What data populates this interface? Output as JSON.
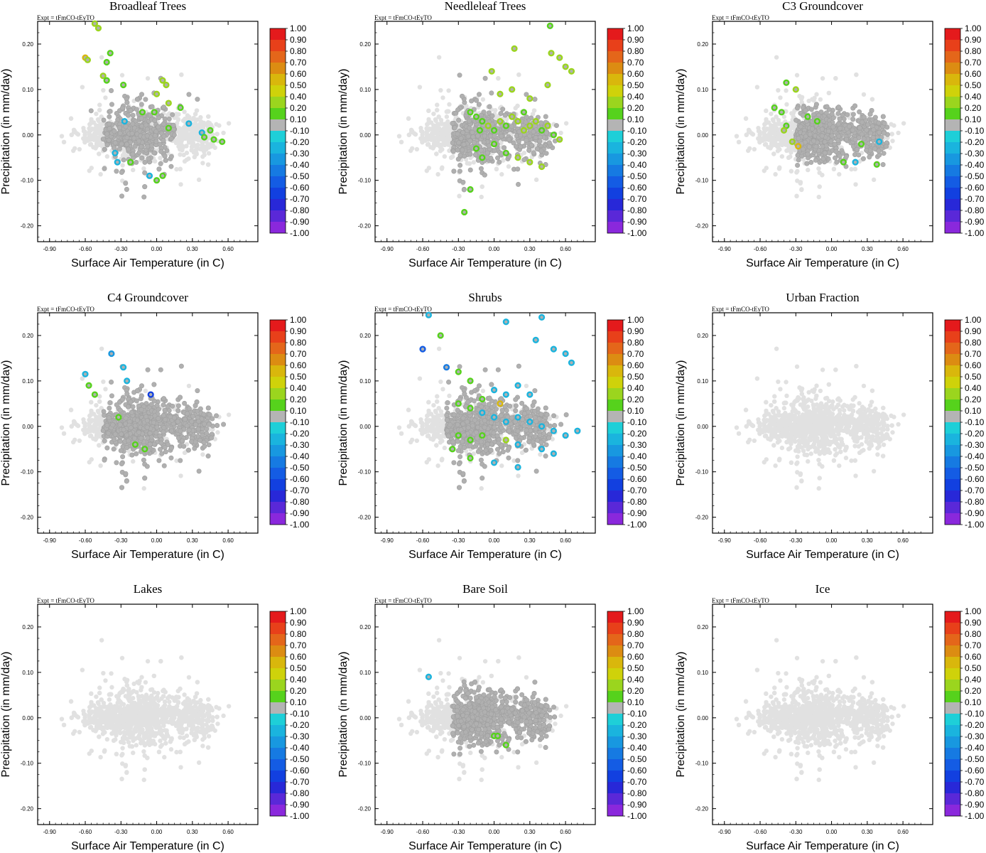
{
  "chart_data": {
    "type": "scatter",
    "experiment_label": "Expt = tFmCO-tEyTO",
    "xlabel": "Surface Air Temperature (in C)",
    "ylabel": "Precipitation (in mm/day)",
    "xlim": [
      -1.0,
      0.85
    ],
    "ylim": [
      -0.235,
      0.25
    ],
    "xticks": [
      -0.9,
      -0.6,
      -0.3,
      0.0,
      0.3,
      0.6
    ],
    "xtick_labels": [
      "-0.90",
      "-0.60",
      "-0.30",
      "0.00",
      "0.30",
      "0.60"
    ],
    "yticks": [
      -0.2,
      -0.1,
      0.0,
      0.1,
      0.2
    ],
    "ytick_labels": [
      "-0.20",
      "-0.10",
      "0.00",
      "0.10",
      "0.20"
    ],
    "colorbar": {
      "labels": [
        "1.00",
        "0.90",
        "0.80",
        "0.70",
        "0.60",
        "0.50",
        "0.40",
        "0.20",
        "0.10",
        "-0.10",
        "-0.20",
        "-0.30",
        "-0.40",
        "-0.50",
        "-0.60",
        "-0.70",
        "-0.80",
        "-0.90",
        "-1.00"
      ],
      "colors": [
        "#e41a1c",
        "#e8401a",
        "#e4661a",
        "#dc8c12",
        "#d9b70c",
        "#cfd20a",
        "#9bd51e",
        "#56d21c",
        "#b4b4b4",
        "#1ecfd8",
        "#1ab4de",
        "#1898e0",
        "#167ae2",
        "#145ce4",
        "#1240e0",
        "#2828d8",
        "#5a28d8",
        "#8a28dc"
      ]
    },
    "panels": [
      {
        "title": "Broadleaf Trees",
        "colored_points": [
          {
            "x": -0.6,
            "y": 0.17,
            "v": 0.6
          },
          {
            "x": -0.58,
            "y": 0.165,
            "v": 0.4
          },
          {
            "x": -0.52,
            "y": 0.245,
            "v": 0.3
          },
          {
            "x": -0.49,
            "y": 0.235,
            "v": 0.3
          },
          {
            "x": -0.39,
            "y": 0.18,
            "v": 0.15
          },
          {
            "x": -0.42,
            "y": 0.16,
            "v": 0.15
          },
          {
            "x": -0.45,
            "y": 0.13,
            "v": 0.3
          },
          {
            "x": -0.42,
            "y": 0.12,
            "v": 0.2
          },
          {
            "x": -0.28,
            "y": 0.11,
            "v": 0.15
          },
          {
            "x": -0.12,
            "y": 0.05,
            "v": 0.15
          },
          {
            "x": -0.02,
            "y": 0.05,
            "v": 0.15
          },
          {
            "x": 0.0,
            "y": 0.09,
            "v": 0.3
          },
          {
            "x": 0.05,
            "y": 0.12,
            "v": 0.4
          },
          {
            "x": 0.08,
            "y": 0.11,
            "v": 0.4
          },
          {
            "x": 0.1,
            "y": 0.07,
            "v": 0.3
          },
          {
            "x": 0.1,
            "y": 0.015,
            "v": 0.15
          },
          {
            "x": 0.2,
            "y": 0.06,
            "v": 0.15
          },
          {
            "x": 0.27,
            "y": 0.025,
            "v": -0.2
          },
          {
            "x": 0.38,
            "y": 0.005,
            "v": -0.2
          },
          {
            "x": 0.4,
            "y": -0.005,
            "v": 0.15
          },
          {
            "x": 0.45,
            "y": 0.01,
            "v": 0.15
          },
          {
            "x": 0.48,
            "y": -0.01,
            "v": 0.15
          },
          {
            "x": 0.55,
            "y": -0.015,
            "v": 0.15
          },
          {
            "x": 0.05,
            "y": -0.09,
            "v": 0.15
          },
          {
            "x": 0.0,
            "y": -0.1,
            "v": 0.15
          },
          {
            "x": -0.35,
            "y": -0.04,
            "v": -0.2
          },
          {
            "x": -0.33,
            "y": -0.06,
            "v": -0.2
          },
          {
            "x": -0.22,
            "y": -0.06,
            "v": 0.15
          },
          {
            "x": -0.27,
            "y": 0.03,
            "v": -0.2
          },
          {
            "x": -0.06,
            "y": -0.09,
            "v": -0.2
          }
        ]
      },
      {
        "title": "Needleleaf Trees",
        "colored_points": [
          {
            "x": 0.17,
            "y": 0.19,
            "v": 0.3
          },
          {
            "x": 0.47,
            "y": 0.24,
            "v": 0.15
          },
          {
            "x": 0.48,
            "y": 0.18,
            "v": 0.4
          },
          {
            "x": 0.55,
            "y": 0.17,
            "v": 0.3
          },
          {
            "x": 0.6,
            "y": 0.15,
            "v": 0.3
          },
          {
            "x": 0.65,
            "y": 0.14,
            "v": 0.4
          },
          {
            "x": -0.02,
            "y": 0.14,
            "v": 0.3
          },
          {
            "x": -0.2,
            "y": 0.05,
            "v": 0.15
          },
          {
            "x": -0.15,
            "y": 0.04,
            "v": 0.15
          },
          {
            "x": -0.1,
            "y": 0.03,
            "v": 0.15
          },
          {
            "x": -0.05,
            "y": 0.02,
            "v": 0.3
          },
          {
            "x": 0.0,
            "y": 0.01,
            "v": 0.15
          },
          {
            "x": 0.05,
            "y": 0.03,
            "v": 0.3
          },
          {
            "x": 0.1,
            "y": 0.02,
            "v": 0.15
          },
          {
            "x": 0.15,
            "y": 0.04,
            "v": 0.3
          },
          {
            "x": 0.2,
            "y": 0.03,
            "v": 0.3
          },
          {
            "x": 0.25,
            "y": 0.01,
            "v": 0.3
          },
          {
            "x": 0.3,
            "y": 0.02,
            "v": 0.3
          },
          {
            "x": 0.35,
            "y": 0.03,
            "v": 0.3
          },
          {
            "x": 0.4,
            "y": 0.01,
            "v": 0.15
          },
          {
            "x": 0.45,
            "y": 0.02,
            "v": 0.3
          },
          {
            "x": 0.5,
            "y": 0.0,
            "v": 0.15
          },
          {
            "x": 0.55,
            "y": -0.01,
            "v": 0.3
          },
          {
            "x": -0.15,
            "y": -0.03,
            "v": 0.15
          },
          {
            "x": -0.1,
            "y": -0.05,
            "v": 0.15
          },
          {
            "x": 0.0,
            "y": -0.02,
            "v": 0.15
          },
          {
            "x": 0.1,
            "y": -0.04,
            "v": 0.15
          },
          {
            "x": 0.2,
            "y": -0.05,
            "v": 0.3
          },
          {
            "x": 0.3,
            "y": -0.06,
            "v": 0.3
          },
          {
            "x": 0.4,
            "y": -0.07,
            "v": 0.4
          },
          {
            "x": -0.2,
            "y": -0.12,
            "v": 0.15
          },
          {
            "x": -0.25,
            "y": -0.17,
            "v": 0.15
          },
          {
            "x": 0.05,
            "y": 0.09,
            "v": 0.3
          },
          {
            "x": 0.15,
            "y": 0.1,
            "v": 0.3
          },
          {
            "x": 0.3,
            "y": 0.08,
            "v": 0.3
          },
          {
            "x": 0.45,
            "y": 0.11,
            "v": 0.3
          },
          {
            "x": -0.12,
            "y": 0.01,
            "v": 0.15
          },
          {
            "x": 0.25,
            "y": 0.05,
            "v": 0.15
          }
        ]
      },
      {
        "title": "C3 Groundcover",
        "colored_points": [
          {
            "x": -0.48,
            "y": 0.06,
            "v": 0.15
          },
          {
            "x": -0.42,
            "y": 0.05,
            "v": 0.15
          },
          {
            "x": -0.38,
            "y": 0.115,
            "v": 0.15
          },
          {
            "x": -0.3,
            "y": 0.1,
            "v": 0.4
          },
          {
            "x": -0.38,
            "y": 0.02,
            "v": 0.15
          },
          {
            "x": -0.4,
            "y": 0.01,
            "v": 0.3
          },
          {
            "x": -0.33,
            "y": -0.015,
            "v": 0.4
          },
          {
            "x": -0.28,
            "y": -0.025,
            "v": 0.6
          },
          {
            "x": -0.2,
            "y": 0.04,
            "v": 0.15
          },
          {
            "x": -0.12,
            "y": 0.03,
            "v": 0.15
          },
          {
            "x": 0.1,
            "y": -0.06,
            "v": 0.15
          },
          {
            "x": 0.25,
            "y": -0.02,
            "v": 0.15
          },
          {
            "x": 0.38,
            "y": -0.065,
            "v": 0.15
          },
          {
            "x": 0.4,
            "y": -0.015,
            "v": -0.2
          },
          {
            "x": 0.2,
            "y": -0.06,
            "v": -0.2
          }
        ]
      },
      {
        "title": "C4 Groundcover",
        "colored_points": [
          {
            "x": -0.6,
            "y": 0.115,
            "v": -0.2
          },
          {
            "x": -0.57,
            "y": 0.09,
            "v": 0.15
          },
          {
            "x": -0.52,
            "y": 0.07,
            "v": 0.15
          },
          {
            "x": -0.38,
            "y": 0.16,
            "v": -0.3
          },
          {
            "x": -0.28,
            "y": 0.13,
            "v": -0.2
          },
          {
            "x": -0.25,
            "y": 0.1,
            "v": -0.2
          },
          {
            "x": -0.32,
            "y": 0.02,
            "v": 0.15
          },
          {
            "x": -0.05,
            "y": 0.07,
            "v": -0.6
          },
          {
            "x": -0.18,
            "y": -0.04,
            "v": 0.15
          },
          {
            "x": -0.1,
            "y": -0.05,
            "v": 0.15
          }
        ]
      },
      {
        "title": "Shrubs",
        "colored_points": [
          {
            "x": -0.55,
            "y": 0.245,
            "v": -0.2
          },
          {
            "x": -0.6,
            "y": 0.17,
            "v": -0.5
          },
          {
            "x": -0.45,
            "y": 0.2,
            "v": 0.15
          },
          {
            "x": -0.4,
            "y": 0.13,
            "v": -0.4
          },
          {
            "x": 0.1,
            "y": 0.23,
            "v": -0.2
          },
          {
            "x": 0.35,
            "y": 0.19,
            "v": -0.2
          },
          {
            "x": 0.4,
            "y": 0.24,
            "v": -0.2
          },
          {
            "x": 0.5,
            "y": 0.17,
            "v": -0.2
          },
          {
            "x": 0.6,
            "y": 0.16,
            "v": -0.2
          },
          {
            "x": 0.65,
            "y": 0.14,
            "v": -0.2
          },
          {
            "x": -0.3,
            "y": 0.12,
            "v": 0.15
          },
          {
            "x": -0.2,
            "y": 0.1,
            "v": 0.15
          },
          {
            "x": 0.0,
            "y": 0.08,
            "v": -0.2
          },
          {
            "x": 0.1,
            "y": 0.07,
            "v": -0.2
          },
          {
            "x": 0.2,
            "y": 0.09,
            "v": -0.2
          },
          {
            "x": 0.3,
            "y": 0.07,
            "v": -0.2
          },
          {
            "x": -0.3,
            "y": 0.05,
            "v": 0.15
          },
          {
            "x": -0.2,
            "y": 0.04,
            "v": 0.15
          },
          {
            "x": -0.1,
            "y": 0.03,
            "v": -0.2
          },
          {
            "x": 0.0,
            "y": 0.02,
            "v": -0.2
          },
          {
            "x": 0.1,
            "y": 0.01,
            "v": -0.2
          },
          {
            "x": 0.2,
            "y": 0.02,
            "v": -0.2
          },
          {
            "x": 0.3,
            "y": 0.01,
            "v": -0.2
          },
          {
            "x": 0.4,
            "y": 0.0,
            "v": -0.2
          },
          {
            "x": 0.5,
            "y": -0.01,
            "v": -0.2
          },
          {
            "x": 0.6,
            "y": -0.02,
            "v": -0.2
          },
          {
            "x": 0.7,
            "y": -0.01,
            "v": -0.2
          },
          {
            "x": -0.3,
            "y": -0.02,
            "v": 0.15
          },
          {
            "x": -0.2,
            "y": -0.03,
            "v": 0.15
          },
          {
            "x": -0.1,
            "y": -0.02,
            "v": 0.15
          },
          {
            "x": 0.1,
            "y": -0.03,
            "v": 0.4
          },
          {
            "x": 0.2,
            "y": -0.04,
            "v": -0.2
          },
          {
            "x": 0.4,
            "y": -0.05,
            "v": -0.2
          },
          {
            "x": 0.5,
            "y": -0.06,
            "v": -0.2
          },
          {
            "x": -0.2,
            "y": -0.07,
            "v": 0.15
          },
          {
            "x": 0.0,
            "y": -0.08,
            "v": -0.2
          },
          {
            "x": 0.2,
            "y": -0.09,
            "v": -0.2
          },
          {
            "x": -0.35,
            "y": -0.05,
            "v": 0.15
          },
          {
            "x": 0.05,
            "y": 0.05,
            "v": 0.6
          },
          {
            "x": -0.1,
            "y": 0.06,
            "v": 0.15
          }
        ]
      },
      {
        "title": "Urban Fraction",
        "colored_points": []
      },
      {
        "title": "Lakes",
        "colored_points": []
      },
      {
        "title": "Bare Soil",
        "colored_points": [
          {
            "x": -0.55,
            "y": 0.09,
            "v": -0.2
          },
          {
            "x": 0.0,
            "y": -0.04,
            "v": 0.15
          },
          {
            "x": 0.03,
            "y": -0.04,
            "v": 0.15
          },
          {
            "x": 0.1,
            "y": -0.06,
            "v": 0.15
          }
        ]
      },
      {
        "title": "Ice",
        "colored_points": []
      }
    ]
  }
}
